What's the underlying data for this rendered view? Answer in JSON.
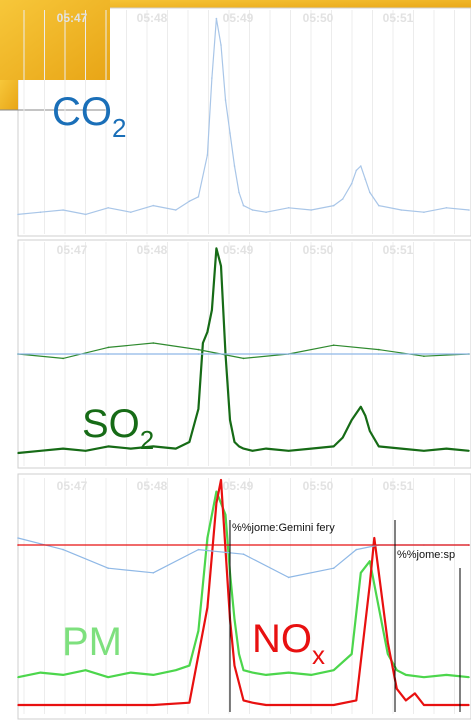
{
  "chart_data": [
    {
      "type": "line",
      "panel": "co2",
      "label_main": "CO",
      "label_sub": "2",
      "time_ticks": [
        "05:47",
        "05:48",
        "05:49",
        "05:50",
        "05:51"
      ],
      "series": [
        {
          "color": "#a9c6e8",
          "x": [
            0,
            0.05,
            0.1,
            0.15,
            0.2,
            0.25,
            0.3,
            0.35,
            0.38,
            0.4,
            0.42,
            0.43,
            0.44,
            0.45,
            0.46,
            0.47,
            0.48,
            0.49,
            0.5,
            0.52,
            0.55,
            0.6,
            0.65,
            0.7,
            0.72,
            0.74,
            0.75,
            0.76,
            0.77,
            0.78,
            0.8,
            0.85,
            0.9,
            0.95,
            1
          ],
          "y": [
            0.08,
            0.09,
            0.1,
            0.08,
            0.11,
            0.09,
            0.12,
            0.1,
            0.14,
            0.16,
            0.35,
            0.7,
            0.97,
            0.85,
            0.6,
            0.45,
            0.3,
            0.18,
            0.12,
            0.1,
            0.09,
            0.11,
            0.1,
            0.12,
            0.15,
            0.22,
            0.28,
            0.3,
            0.24,
            0.18,
            0.12,
            0.1,
            0.09,
            0.11,
            0.1
          ]
        }
      ]
    },
    {
      "type": "line",
      "panel": "so2",
      "label_main": "SO",
      "label_sub": "2",
      "time_ticks": [
        "05:47",
        "05:48",
        "05:49",
        "05:50",
        "05:51"
      ],
      "series": [
        {
          "color": "#166b16",
          "x": [
            0,
            0.05,
            0.1,
            0.15,
            0.2,
            0.25,
            0.3,
            0.35,
            0.38,
            0.4,
            0.41,
            0.42,
            0.43,
            0.44,
            0.45,
            0.46,
            0.47,
            0.48,
            0.49,
            0.5,
            0.52,
            0.55,
            0.6,
            0.65,
            0.7,
            0.72,
            0.74,
            0.76,
            0.77,
            0.78,
            0.8,
            0.85,
            0.9,
            0.95,
            1
          ],
          "y": [
            0.05,
            0.06,
            0.07,
            0.06,
            0.08,
            0.07,
            0.08,
            0.07,
            0.1,
            0.25,
            0.55,
            0.6,
            0.7,
            0.98,
            0.9,
            0.5,
            0.2,
            0.1,
            0.08,
            0.07,
            0.06,
            0.07,
            0.06,
            0.07,
            0.08,
            0.12,
            0.2,
            0.26,
            0.22,
            0.15,
            0.08,
            0.07,
            0.06,
            0.07,
            0.06
          ]
        },
        {
          "color": "#2f8a2f",
          "x": [
            0,
            0.1,
            0.2,
            0.3,
            0.4,
            0.5,
            0.6,
            0.7,
            0.8,
            0.9,
            1
          ],
          "y": [
            0.5,
            0.48,
            0.53,
            0.55,
            0.52,
            0.48,
            0.5,
            0.54,
            0.52,
            0.49,
            0.5
          ]
        },
        {
          "color": "#8fb8e6",
          "x": [
            0,
            0.2,
            0.4,
            0.6,
            0.8,
            1
          ],
          "y": [
            0.5,
            0.5,
            0.5,
            0.5,
            0.5,
            0.5
          ]
        }
      ]
    },
    {
      "type": "line",
      "panel": "pm_nox",
      "label_pm": "PM",
      "label_nox_main": "NO",
      "label_nox_sub": "x",
      "time_ticks": [
        "05:47",
        "05:48",
        "05:49",
        "05:50",
        "05:51"
      ],
      "annotations": [
        "%%jome:Gemini fery",
        "%%jome:sp"
      ],
      "series": [
        {
          "color": "#4cd64c",
          "x": [
            0,
            0.05,
            0.1,
            0.15,
            0.2,
            0.25,
            0.3,
            0.35,
            0.38,
            0.4,
            0.42,
            0.44,
            0.45,
            0.46,
            0.47,
            0.48,
            0.49,
            0.5,
            0.52,
            0.55,
            0.6,
            0.65,
            0.7,
            0.74,
            0.76,
            0.78,
            0.8,
            0.82,
            0.84,
            0.86,
            0.9,
            0.95,
            1
          ],
          "y": [
            0.15,
            0.17,
            0.16,
            0.18,
            0.15,
            0.17,
            0.16,
            0.18,
            0.2,
            0.35,
            0.75,
            0.95,
            0.9,
            0.85,
            0.6,
            0.4,
            0.25,
            0.18,
            0.17,
            0.16,
            0.17,
            0.16,
            0.18,
            0.25,
            0.6,
            0.65,
            0.45,
            0.25,
            0.18,
            0.16,
            0.15,
            0.16,
            0.15
          ]
        },
        {
          "color": "#e81010",
          "x": [
            0,
            0.05,
            0.1,
            0.2,
            0.3,
            0.38,
            0.42,
            0.44,
            0.45,
            0.46,
            0.47,
            0.48,
            0.5,
            0.52,
            0.55,
            0.6,
            0.7,
            0.75,
            0.78,
            0.79,
            0.8,
            0.82,
            0.84,
            0.86,
            0.88,
            0.9,
            1
          ],
          "y": [
            0.03,
            0.03,
            0.03,
            0.03,
            0.03,
            0.04,
            0.45,
            0.9,
            1.0,
            0.7,
            0.4,
            0.2,
            0.05,
            0.04,
            0.03,
            0.03,
            0.03,
            0.05,
            0.55,
            0.75,
            0.6,
            0.3,
            0.1,
            0.05,
            0.08,
            0.03,
            0.03
          ]
        },
        {
          "color": "#8fb8e6",
          "x": [
            0,
            0.1,
            0.2,
            0.3,
            0.4,
            0.5,
            0.6,
            0.7,
            0.75,
            0.8,
            0.9,
            1
          ],
          "y": [
            0.75,
            0.7,
            0.62,
            0.6,
            0.7,
            0.68,
            0.58,
            0.62,
            0.7,
            0.72,
            0.72,
            0.72
          ]
        },
        {
          "color": "#e81010",
          "x": [
            0,
            1
          ],
          "y": [
            0.72,
            0.72
          ]
        }
      ]
    }
  ]
}
